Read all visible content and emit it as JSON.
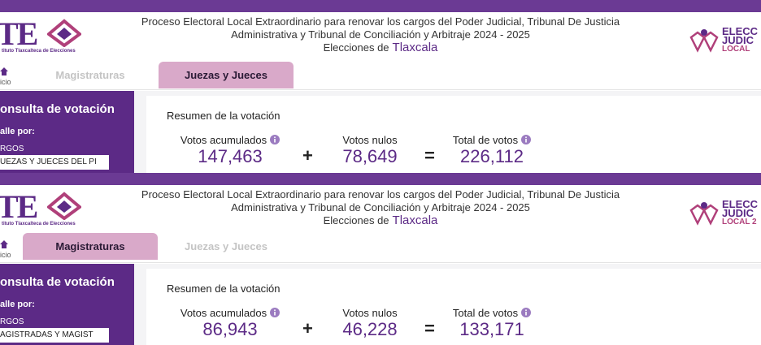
{
  "screens": [
    {
      "header": {
        "logo": "TE",
        "logo_subtitle": "tituto Tlaxcalteca de Elecciones",
        "title_line1": "Proceso Electoral Local Extraordinario para renovar los cargos del Poder Judicial, Tribunal De Justicia",
        "title_line2": "Administrativa y Tribunal de Conciliación y Arbitraje 2024 - 2025",
        "subtitle_prefix": "Elecciones de",
        "subtitle_place": "Tlaxcala",
        "badge": [
          "ELECC",
          "JUDIC",
          "LOCAL"
        ]
      },
      "nav": {
        "home": "icio",
        "tabs": [
          "Magistraturas",
          "Juezas y Jueces"
        ],
        "active_tab": 1
      },
      "sidebar": {
        "title": "onsulta de votación",
        "filter_label": "alle por:",
        "field_label": "RGOS",
        "select": "UEZAS Y JUECES DEL PI"
      },
      "summary": {
        "title": "Resumen de la votación",
        "items": [
          {
            "label": "Votos acumulados",
            "value": "147,463"
          },
          {
            "label": "Votos nulos",
            "value": "78,649"
          },
          {
            "label": "Total de votos",
            "value": "226,112"
          }
        ],
        "operators": [
          "+",
          "="
        ]
      }
    },
    {
      "header": {
        "logo": "TE",
        "logo_subtitle": "tituto Tlaxcalteca de Elecciones",
        "title_line1": "Proceso Electoral Local Extraordinario para renovar los cargos del Poder Judicial, Tribunal De Justicia",
        "title_line2": "Administrativa y Tribunal de Conciliación y Arbitraje 2024 - 2025",
        "subtitle_prefix": "Elecciones de",
        "subtitle_place": "Tlaxcala",
        "badge": [
          "ELECC",
          "JUDIC",
          "LOCAL 2"
        ]
      },
      "nav": {
        "home": "icio",
        "tabs": [
          "Magistraturas",
          "Juezas y Jueces"
        ],
        "active_tab": 0
      },
      "sidebar": {
        "title": "onsulta de votación",
        "filter_label": "alle por:",
        "field_label": "RGOS",
        "select": "AGISTRADAS Y MAGIST"
      },
      "summary": {
        "title": "Resumen de la votación",
        "items": [
          {
            "label": "Votos acumulados",
            "value": "86,943"
          },
          {
            "label": "Votos nulos",
            "value": "46,228"
          },
          {
            "label": "Total de votos",
            "value": "133,171"
          }
        ],
        "operators": [
          "+",
          "="
        ]
      }
    }
  ]
}
